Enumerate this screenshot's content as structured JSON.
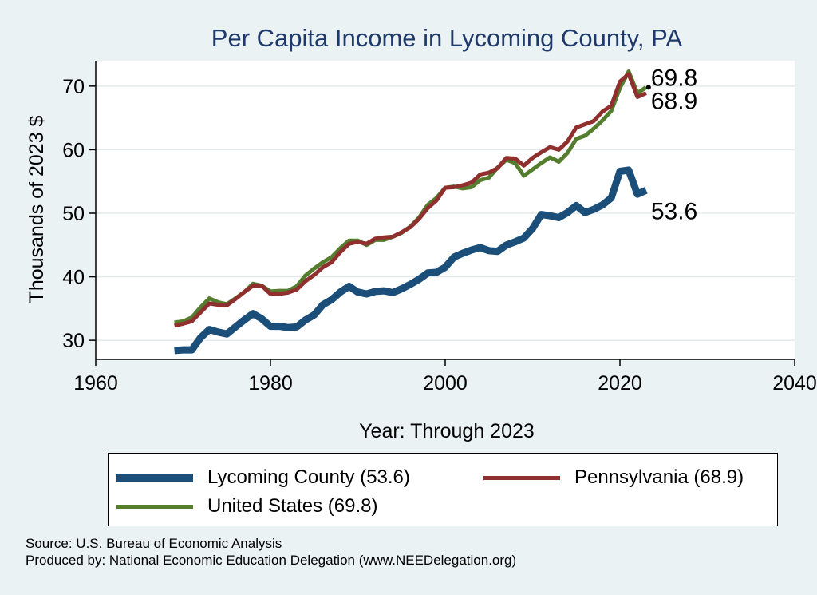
{
  "chart_data": {
    "type": "line",
    "title": "Per Capita Income in Lycoming County, PA",
    "xlabel": "Year: Through 2023",
    "ylabel": "Thousands of 2023 $",
    "xlim": [
      1960,
      2040
    ],
    "ylim": [
      27,
      74
    ],
    "xticks": [
      1960,
      1980,
      2000,
      2020,
      2040
    ],
    "yticks": [
      30,
      40,
      50,
      60,
      70
    ],
    "grid": true,
    "years": [
      1969,
      1970,
      1971,
      1972,
      1973,
      1974,
      1975,
      1976,
      1977,
      1978,
      1979,
      1980,
      1981,
      1982,
      1983,
      1984,
      1985,
      1986,
      1987,
      1988,
      1989,
      1990,
      1991,
      1992,
      1993,
      1994,
      1995,
      1996,
      1997,
      1998,
      1999,
      2000,
      2001,
      2002,
      2003,
      2004,
      2005,
      2006,
      2007,
      2008,
      2009,
      2010,
      2011,
      2012,
      2013,
      2014,
      2015,
      2016,
      2017,
      2018,
      2019,
      2020,
      2021,
      2022,
      2023
    ],
    "series": [
      {
        "name": "Lycoming County",
        "legend": "Lycoming County (53.6)",
        "end_label": "53.6",
        "color": "#1b4f7a",
        "width": 9,
        "values": [
          28.4,
          28.5,
          28.5,
          30.4,
          31.7,
          31.3,
          31.0,
          32.1,
          33.2,
          34.2,
          33.4,
          32.2,
          32.2,
          32.0,
          32.1,
          33.2,
          34.0,
          35.6,
          36.4,
          37.6,
          38.5,
          37.6,
          37.3,
          37.7,
          37.8,
          37.5,
          38.1,
          38.8,
          39.6,
          40.6,
          40.7,
          41.5,
          43.1,
          43.7,
          44.2,
          44.6,
          44.1,
          44.0,
          45.0,
          45.5,
          46.1,
          47.6,
          49.8,
          49.6,
          49.3,
          50.1,
          51.2,
          50.1,
          50.6,
          51.3,
          52.4,
          56.6,
          56.8,
          53.0,
          53.6
        ]
      },
      {
        "name": "Pennsylvania",
        "legend": "Pennsylvania (68.9)",
        "end_label": "68.9",
        "color": "#8f2f2e",
        "width": 5,
        "values": [
          32.3,
          32.6,
          33.0,
          34.4,
          35.8,
          35.6,
          35.5,
          36.5,
          37.6,
          38.6,
          38.6,
          37.3,
          37.3,
          37.5,
          38.0,
          39.3,
          40.3,
          41.5,
          42.3,
          43.9,
          45.2,
          45.5,
          45.2,
          46.0,
          46.2,
          46.3,
          47.0,
          47.8,
          49.1,
          50.8,
          52.0,
          54.0,
          54.1,
          54.4,
          54.8,
          56.1,
          56.4,
          57.1,
          58.7,
          58.6,
          57.5,
          58.7,
          59.6,
          60.4,
          60.0,
          61.3,
          63.5,
          64.0,
          64.5,
          66.0,
          66.9,
          70.7,
          71.9,
          68.3,
          68.9
        ]
      },
      {
        "name": "United States",
        "legend": "United States (69.8)",
        "end_label": "69.8",
        "color": "#547d2e",
        "width": 5,
        "values": [
          32.8,
          33.0,
          33.6,
          35.2,
          36.6,
          36.0,
          35.7,
          36.6,
          37.6,
          38.9,
          38.6,
          37.7,
          37.8,
          37.8,
          38.5,
          40.2,
          41.3,
          42.3,
          43.1,
          44.5,
          45.7,
          45.7,
          45.0,
          45.8,
          45.8,
          46.3,
          46.9,
          47.9,
          49.3,
          51.3,
          52.4,
          54.0,
          54.2,
          53.9,
          54.1,
          55.2,
          55.6,
          57.2,
          58.4,
          57.9,
          55.9,
          56.9,
          57.9,
          58.8,
          58.1,
          59.5,
          61.7,
          62.2,
          63.3,
          64.6,
          66.1,
          69.7,
          72.3,
          68.9,
          69.8
        ]
      }
    ]
  },
  "footer": {
    "source": "Source: U.S. Bureau of Economic Analysis",
    "produced": "Produced by: National Economic Education Delegation (www.NEEDelegation.org)"
  }
}
